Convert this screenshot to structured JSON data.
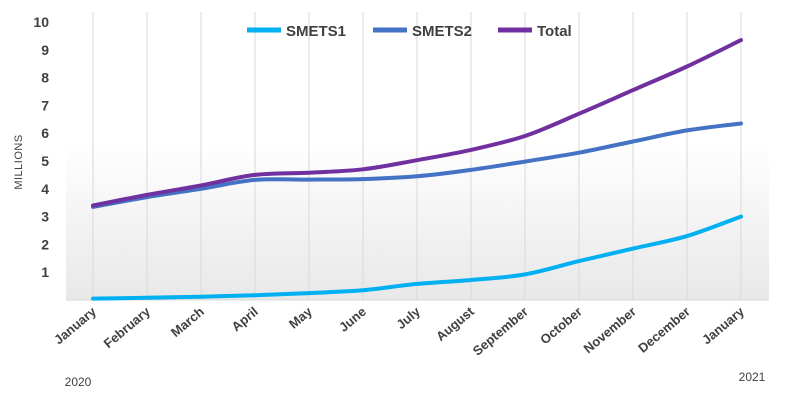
{
  "chart_data": {
    "type": "line",
    "title": "",
    "xlabel": "",
    "ylabel": "MILLIONS",
    "ylim": [
      0,
      10
    ],
    "yticks": [
      1,
      2,
      3,
      4,
      5,
      6,
      7,
      8,
      9,
      10
    ],
    "grid": "vertical",
    "legend_position": "top",
    "categories": [
      "January",
      "February",
      "March",
      "April",
      "May",
      "June",
      "July",
      "August",
      "September",
      "October",
      "November",
      "December",
      "January"
    ],
    "year_labels": {
      "start": "2020",
      "end": "2021"
    },
    "series": [
      {
        "name": "SMETS1",
        "color": "#00b0f0",
        "values": [
          0.05,
          0.08,
          0.12,
          0.17,
          0.25,
          0.35,
          0.58,
          0.72,
          0.92,
          1.4,
          1.85,
          2.3,
          3.0
        ]
      },
      {
        "name": "SMETS2",
        "color": "#4472c4",
        "values": [
          3.35,
          3.7,
          4.0,
          4.32,
          4.33,
          4.35,
          4.45,
          4.68,
          4.98,
          5.3,
          5.7,
          6.1,
          6.35
        ]
      },
      {
        "name": "Total",
        "color": "#7030a0",
        "values": [
          3.4,
          3.78,
          4.12,
          4.5,
          4.58,
          4.7,
          5.03,
          5.4,
          5.9,
          6.7,
          7.55,
          8.4,
          9.35
        ]
      }
    ]
  }
}
